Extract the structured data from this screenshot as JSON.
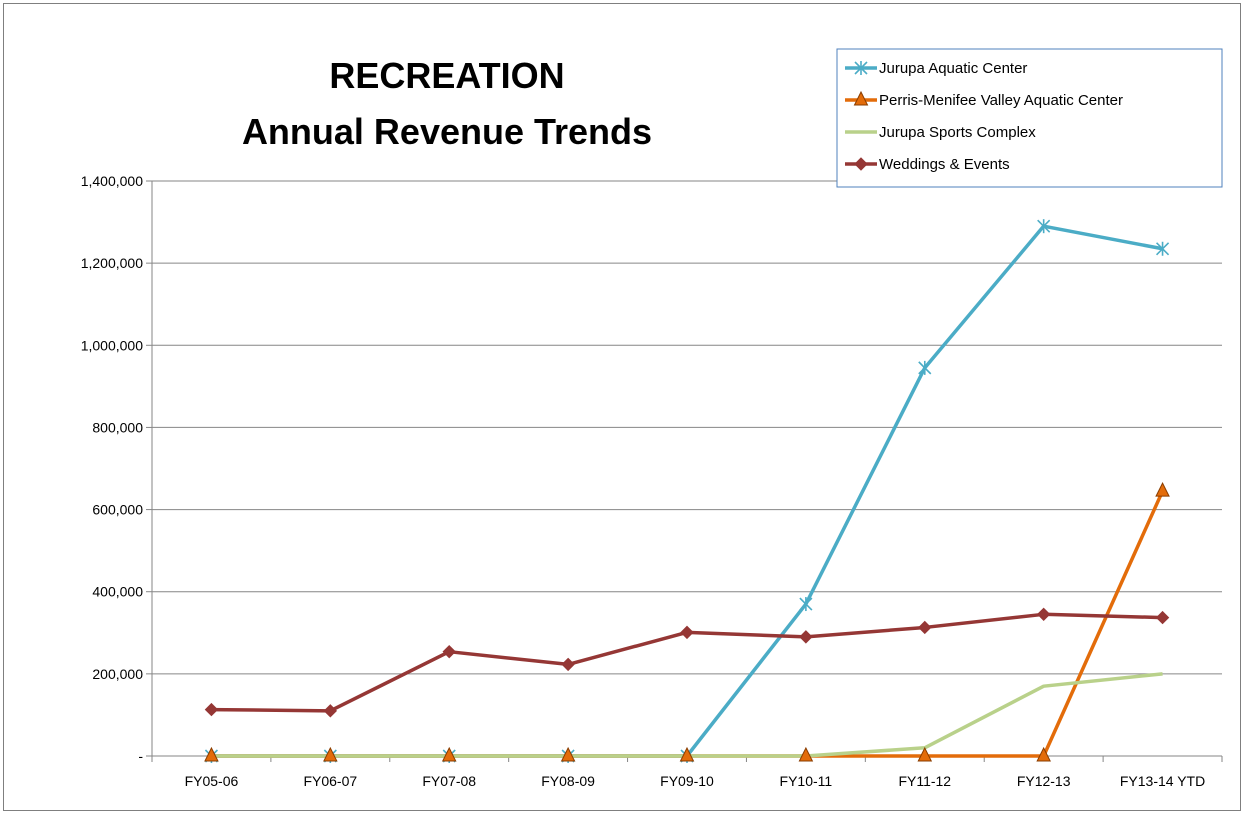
{
  "chart_data": {
    "type": "line",
    "title": "RECREATION",
    "subtitle": "Annual Revenue Trends",
    "xlabel": "",
    "ylabel": "",
    "categories": [
      "FY05-06",
      "FY06-07",
      "FY07-08",
      "FY08-09",
      "FY09-10",
      "FY10-11",
      "FY11-12",
      "FY12-13",
      "FY13-14 YTD"
    ],
    "ylim": [
      0,
      1400000
    ],
    "yticks": [
      0,
      200000,
      400000,
      600000,
      800000,
      1000000,
      1200000,
      1400000
    ],
    "ytick_labels": [
      "-",
      "200,000",
      "400,000",
      "600,000",
      "800,000",
      "1,000,000",
      "1,200,000",
      "1,400,000"
    ],
    "grid": true,
    "legend_position": "top-right",
    "series": [
      {
        "name": "Jurupa Aquatic Center",
        "color": "#4bacc6",
        "marker": "asterisk",
        "values": [
          0,
          0,
          0,
          0,
          0,
          370000,
          945000,
          1290000,
          1235000
        ]
      },
      {
        "name": "Perris-Menifee Valley Aquatic Center",
        "color": "#e36c0a",
        "marker": "triangle",
        "values": [
          0,
          0,
          0,
          0,
          0,
          0,
          0,
          0,
          645000
        ]
      },
      {
        "name": "Jurupa Sports Complex",
        "color": "#b9d18a",
        "marker": "none",
        "values": [
          0,
          0,
          0,
          0,
          0,
          0,
          20000,
          170000,
          200000
        ]
      },
      {
        "name": "Weddings & Events",
        "color": "#953735",
        "marker": "diamond",
        "values": [
          113000,
          110000,
          254000,
          223000,
          301000,
          290000,
          313000,
          345000,
          337000
        ]
      }
    ]
  }
}
